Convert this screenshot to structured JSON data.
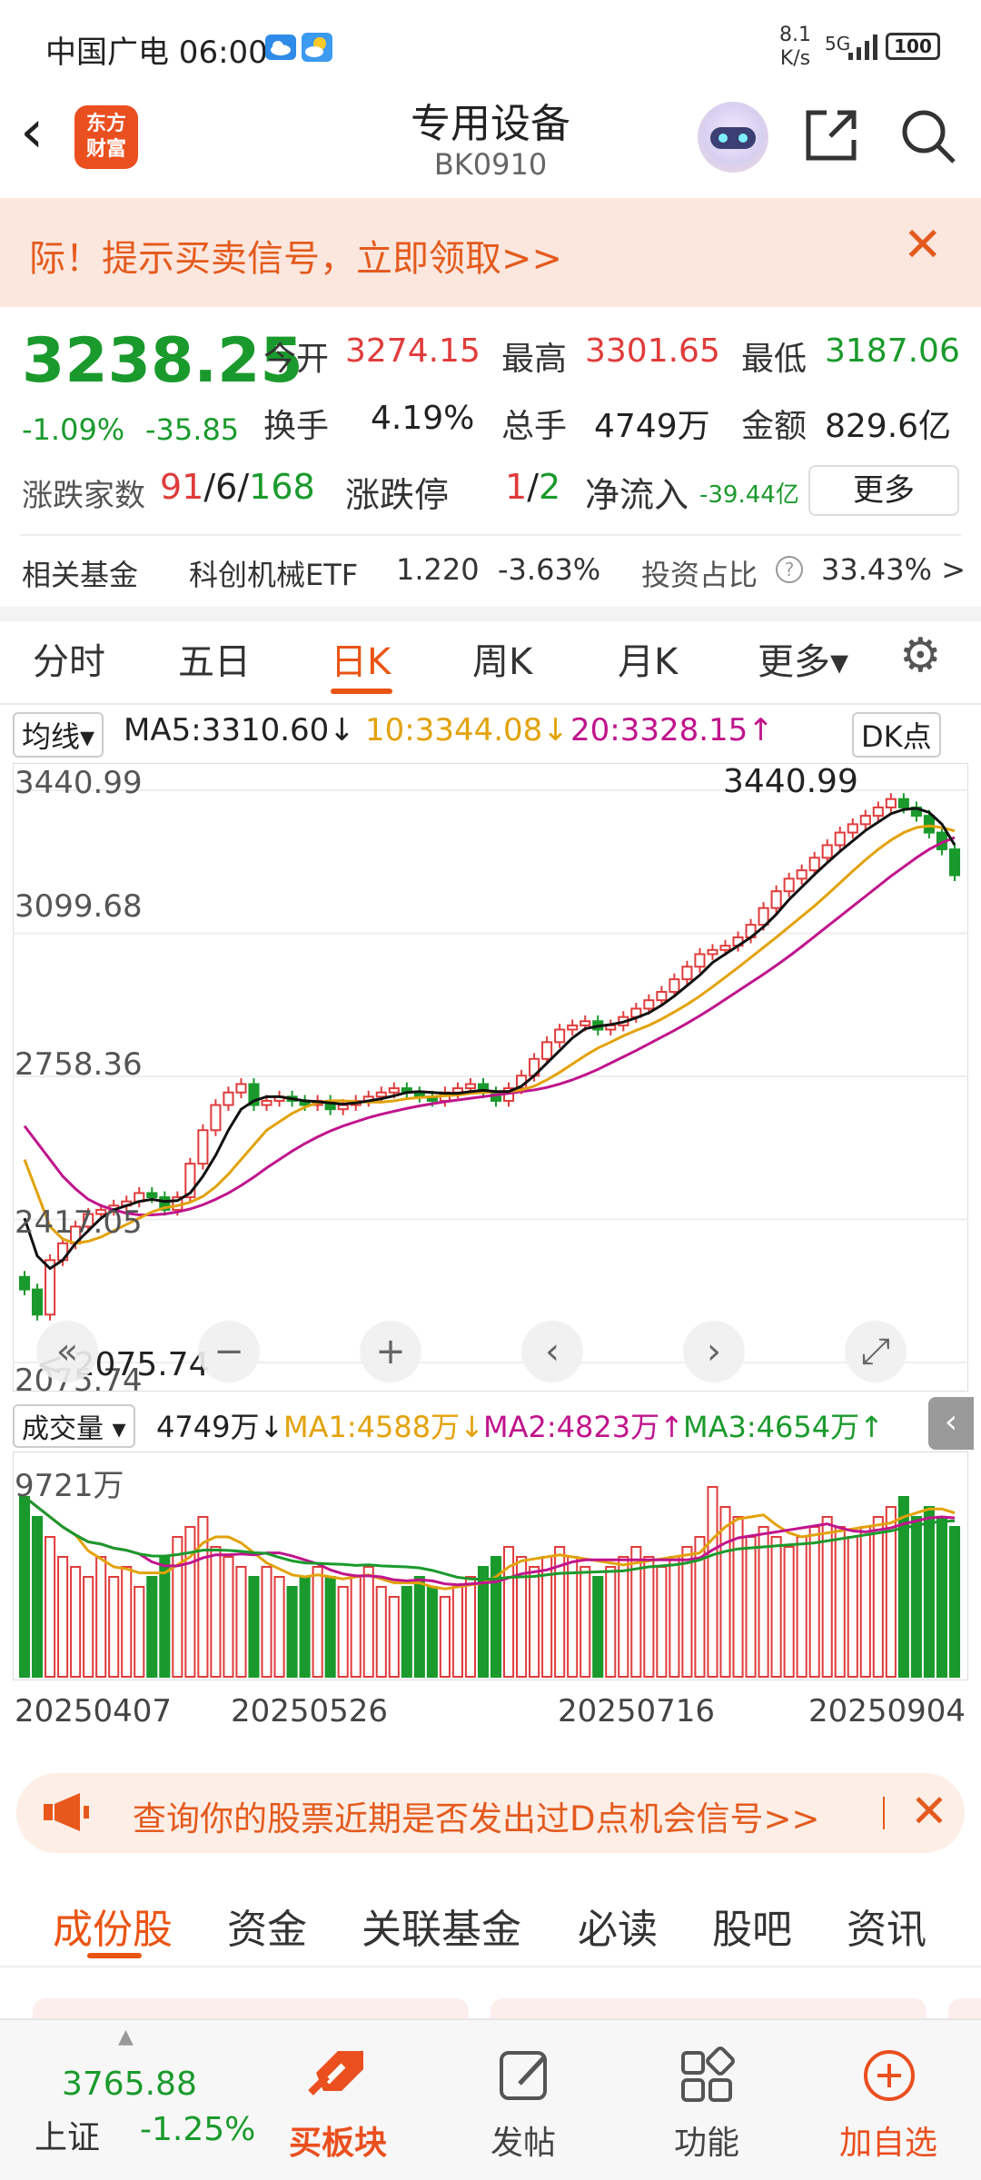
{
  "status": {
    "carrier_time": "中国广电 06:00",
    "net_speed_value": "8.1",
    "net_speed_unit": "K/s",
    "signal": "5G",
    "battery": "100"
  },
  "header": {
    "logo_line1": "东方",
    "logo_line2": "财富",
    "title": "专用设备",
    "code": "BK0910",
    "icons": [
      "back-icon",
      "robot-avatar-icon",
      "share-icon",
      "search-icon"
    ]
  },
  "promo": {
    "text": "际！提示买卖信号，立即领取>>"
  },
  "quote": {
    "price": "3238.25",
    "change_pct": "-1.09%",
    "change_abs": "-35.85",
    "open_label": "今开",
    "open": "3274.15",
    "high_label": "最高",
    "high": "3301.65",
    "low_label": "最低",
    "low": "3187.06",
    "turnover_label": "换手",
    "turnover": "4.19%",
    "volume_label": "总手",
    "volume": "4749万",
    "amount_label": "金额",
    "amount": "829.6亿",
    "breadth_label": "涨跌家数",
    "up": "91",
    "flat": "6",
    "down": "168",
    "limit_label": "涨跌停",
    "limit_up": "1",
    "limit_down": "2",
    "inflow_label": "净流入",
    "inflow": "-39.44亿",
    "more": "更多"
  },
  "fund": {
    "label": "相关基金",
    "name": "科创机械ETF",
    "price": "1.220",
    "chg": "-3.63%",
    "ratio_label": "投资占比",
    "ratio": "33.43% >"
  },
  "period_tabs": [
    "分时",
    "五日",
    "日K",
    "周K",
    "月K",
    "更多▾"
  ],
  "ma_row": {
    "selector": "均线▾",
    "ma5": "MA5:3310.60↓",
    "ma10": "10:3344.08↓",
    "ma20": "20:3328.15↑",
    "dk": "DK点"
  },
  "vol_row": {
    "selector": "成交量 ▾",
    "vol": "4749万↓",
    "ma1": "MA1:4588万↓",
    "ma2": "MA2:4823万↑",
    "ma3": "MA3:4654万↑"
  },
  "chart_data": [
    {
      "type": "candlestick",
      "y_ticks": [
        "3440.99",
        "3099.68",
        "2758.36",
        "2417.05",
        "2075.74"
      ],
      "ylim": [
        2075.74,
        3440.99
      ],
      "max_marker": "3440.99",
      "min_marker": "2075.74",
      "dates": [
        "20250407",
        "20250526",
        "20250716",
        "20250904"
      ],
      "close": [
        2250,
        2190,
        2320,
        2360,
        2400,
        2430,
        2440,
        2450,
        2460,
        2480,
        2470,
        2440,
        2470,
        2550,
        2630,
        2690,
        2720,
        2740,
        2690,
        2700,
        2710,
        2700,
        2690,
        2700,
        2680,
        2690,
        2700,
        2710,
        2720,
        2730,
        2720,
        2710,
        2700,
        2720,
        2730,
        2740,
        2720,
        2700,
        2730,
        2760,
        2800,
        2840,
        2870,
        2880,
        2890,
        2870,
        2880,
        2900,
        2920,
        2940,
        2960,
        2990,
        3020,
        3050,
        3060,
        3070,
        3090,
        3120,
        3160,
        3200,
        3230,
        3250,
        3280,
        3310,
        3340,
        3360,
        3380,
        3400,
        3420,
        3400,
        3380,
        3340,
        3300,
        3238.25
      ],
      "ma5": [
        2420,
        2330,
        2300,
        2320,
        2360,
        2390,
        2420,
        2440,
        2450,
        2460,
        2465,
        2460,
        2462,
        2480,
        2520,
        2570,
        2630,
        2680,
        2700,
        2710,
        2710,
        2705,
        2700,
        2698,
        2695,
        2692,
        2695,
        2700,
        2705,
        2712,
        2720,
        2722,
        2720,
        2718,
        2718,
        2722,
        2725,
        2722,
        2722,
        2735,
        2760,
        2790,
        2820,
        2850,
        2872,
        2878,
        2882,
        2888,
        2898,
        2910,
        2928,
        2950,
        2975,
        3000,
        3030,
        3050,
        3070,
        3090,
        3115,
        3145,
        3180,
        3210,
        3240,
        3268,
        3295,
        3320,
        3345,
        3365,
        3385,
        3395,
        3398,
        3388,
        3360,
        3310.6
      ],
      "ma10": [
        2560,
        2480,
        2400,
        2370,
        2360,
        2365,
        2375,
        2390,
        2405,
        2420,
        2435,
        2445,
        2450,
        2458,
        2472,
        2495,
        2525,
        2560,
        2595,
        2630,
        2650,
        2670,
        2685,
        2695,
        2700,
        2700,
        2698,
        2697,
        2697,
        2700,
        2705,
        2708,
        2710,
        2712,
        2714,
        2718,
        2720,
        2722,
        2722,
        2726,
        2735,
        2750,
        2768,
        2788,
        2808,
        2826,
        2840,
        2855,
        2868,
        2880,
        2895,
        2912,
        2930,
        2950,
        2972,
        2995,
        3018,
        3042,
        3066,
        3090,
        3115,
        3140,
        3165,
        3192,
        3220,
        3248,
        3275,
        3300,
        3322,
        3340,
        3352,
        3356,
        3352,
        3344.08
      ],
      "ma20": [
        2640,
        2600,
        2560,
        2520,
        2490,
        2465,
        2450,
        2440,
        2432,
        2428,
        2428,
        2430,
        2435,
        2442,
        2452,
        2465,
        2480,
        2498,
        2518,
        2540,
        2560,
        2580,
        2598,
        2614,
        2628,
        2640,
        2650,
        2660,
        2668,
        2675,
        2682,
        2688,
        2693,
        2698,
        2702,
        2706,
        2710,
        2714,
        2718,
        2722,
        2726,
        2732,
        2740,
        2750,
        2762,
        2775,
        2790,
        2805,
        2820,
        2836,
        2852,
        2868,
        2885,
        2903,
        2922,
        2942,
        2962,
        2982,
        3002,
        3023,
        3045,
        3068,
        3092,
        3116,
        3140,
        3164,
        3188,
        3212,
        3236,
        3258,
        3280,
        3300,
        3316,
        3328.15
      ]
    },
    {
      "type": "bar",
      "y_max_label": "9721万",
      "ma_lines": [
        "MA1",
        "MA2",
        "MA3"
      ]
    }
  ],
  "d_banner": {
    "text": "查询你的股票近期是否发出过D点机会信号>>"
  },
  "content_tabs": [
    "成份股",
    "资金",
    "关联基金",
    "必读",
    "股吧",
    "资讯"
  ],
  "bottom_nav": {
    "index_value": "3765.88",
    "index_name": "上证",
    "index_change": "-1.25%",
    "items": [
      "买板块",
      "发帖",
      "功能",
      "加自选"
    ]
  }
}
